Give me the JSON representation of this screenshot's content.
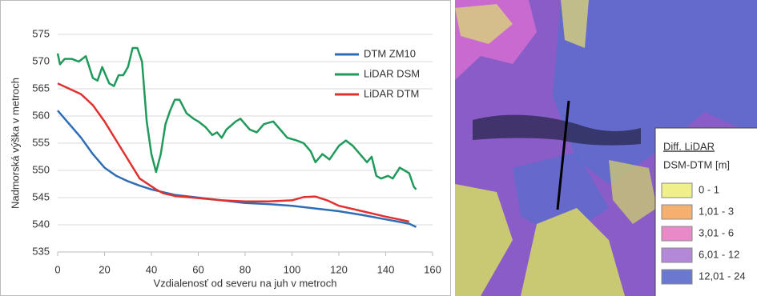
{
  "chart_data": {
    "type": "line",
    "xlabel": "Vzdialenosť od severu na juh v metroch",
    "ylabel": "Nadmorská výška v metroch",
    "xlim": [
      0,
      160
    ],
    "xticks": [
      0,
      20,
      40,
      60,
      80,
      100,
      120,
      140,
      160
    ],
    "ylim": [
      535,
      575
    ],
    "yticks": [
      535,
      540,
      545,
      550,
      555,
      560,
      565,
      570,
      575
    ],
    "grid": true,
    "legend": "top-right",
    "series": [
      {
        "name": "DTM ZM10",
        "color": "#2e6db4",
        "x": [
          0,
          5,
          10,
          15,
          20,
          25,
          30,
          35,
          40,
          45,
          50,
          60,
          70,
          80,
          90,
          100,
          110,
          120,
          130,
          140,
          150,
          153
        ],
        "values": [
          561,
          558.5,
          556,
          553,
          550.5,
          549,
          548,
          547.2,
          546.5,
          546,
          545.5,
          545,
          544.5,
          544,
          543.8,
          543.5,
          543,
          542.5,
          541.8,
          541,
          540.2,
          539.6
        ]
      },
      {
        "name": "LiDAR DSM",
        "color": "#1f9a5a",
        "x": [
          0,
          1,
          3,
          6,
          9,
          12,
          15,
          17,
          19,
          22,
          24,
          26,
          28,
          30,
          32,
          34,
          36,
          38,
          40,
          42,
          44,
          46,
          48,
          50,
          52,
          55,
          58,
          60,
          63,
          66,
          68,
          70,
          72,
          76,
          78,
          82,
          85,
          88,
          92,
          95,
          98,
          102,
          105,
          108,
          110,
          113,
          116,
          120,
          123,
          126,
          129,
          132,
          134,
          136,
          138,
          141,
          143,
          146,
          148,
          150,
          152,
          153
        ],
        "values": [
          571.5,
          569.5,
          570.5,
          570.5,
          570,
          571,
          567,
          566.5,
          569,
          566,
          565.5,
          567.5,
          567.5,
          569,
          572.5,
          572.5,
          570,
          559,
          553,
          549.7,
          553,
          558.5,
          561,
          563,
          563,
          560.5,
          559.5,
          559,
          558,
          556.5,
          557,
          556,
          557.5,
          559,
          559.5,
          557.5,
          557,
          558.5,
          559,
          557.5,
          556,
          555.5,
          555,
          553.5,
          551.5,
          553,
          552,
          554.5,
          555.5,
          554.5,
          553,
          551.5,
          552.5,
          549,
          548.5,
          549,
          548.5,
          550.5,
          550,
          549.5,
          547,
          546.5
        ]
      },
      {
        "name": "LiDAR DTM",
        "color": "#e03030",
        "x": [
          0,
          5,
          10,
          15,
          20,
          25,
          30,
          35,
          42,
          45,
          50,
          60,
          70,
          80,
          90,
          100,
          105,
          110,
          115,
          120,
          130,
          140,
          150
        ],
        "values": [
          566,
          565,
          564,
          562,
          559,
          555.5,
          552,
          548.5,
          546.5,
          545.8,
          545.3,
          544.9,
          544.5,
          544.3,
          544.3,
          544.5,
          545.1,
          545.2,
          544.5,
          543.5,
          542.5,
          541.5,
          540.6
        ]
      }
    ]
  },
  "map": {
    "legend": {
      "title": "Diff. LiDAR",
      "subtitle": "DSM-DTM [m]",
      "items": [
        {
          "label": "0 - 1",
          "color": "#f0f08a"
        },
        {
          "label": "1,01 - 3",
          "color": "#f5b070"
        },
        {
          "label": "3,01 - 6",
          "color": "#e88ac8"
        },
        {
          "label": "6,01 - 12",
          "color": "#b488d8"
        },
        {
          "label": "12,01 - 24",
          "color": "#6a78d0"
        }
      ]
    }
  }
}
